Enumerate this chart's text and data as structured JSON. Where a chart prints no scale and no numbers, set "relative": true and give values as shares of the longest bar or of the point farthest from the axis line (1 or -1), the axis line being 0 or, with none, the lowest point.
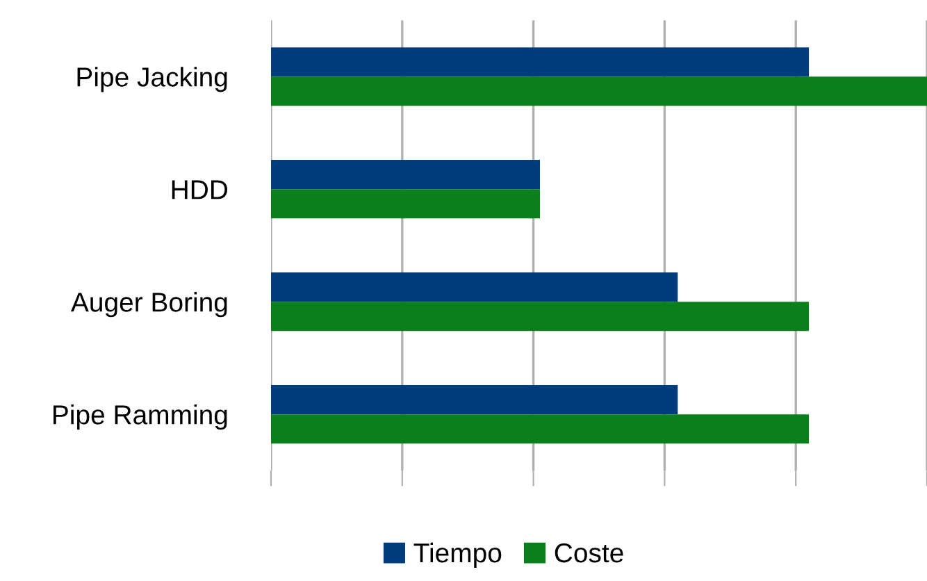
{
  "chart_data": {
    "type": "bar",
    "orientation": "horizontal",
    "relative": true,
    "categories": [
      "Pipe Jacking",
      "HDD",
      "Auger Boring",
      "Pipe Ramming"
    ],
    "series": [
      {
        "name": "Tiempo",
        "color": "#003d7c",
        "values": [
          0.82,
          0.41,
          0.62,
          0.62
        ]
      },
      {
        "name": "Coste",
        "color": "#0b7f1b",
        "values": [
          1,
          0.41,
          0.82,
          0.82
        ]
      }
    ],
    "grid": "x",
    "legend": "bottom"
  }
}
